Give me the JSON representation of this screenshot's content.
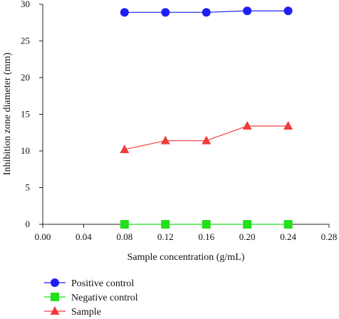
{
  "chart_data": {
    "type": "line",
    "title": "",
    "xlabel": "Sample concentration (g/mL)",
    "ylabel": "Inhibition zone diameter (mm)",
    "xlim": [
      0.0,
      0.28
    ],
    "ylim": [
      0,
      30
    ],
    "xticks": [
      "0.00",
      "0.04",
      "0.08",
      "0.12",
      "0.16",
      "0.20",
      "0.24",
      "0.28"
    ],
    "yticks": [
      "0",
      "5",
      "10",
      "15",
      "20",
      "25",
      "30"
    ],
    "x": [
      0.08,
      0.12,
      0.16,
      0.2,
      0.24
    ],
    "grid": false,
    "legend_position": "bottom-left",
    "series": [
      {
        "name": "Positive control",
        "values": [
          28.9,
          28.9,
          28.9,
          29.1,
          29.1
        ],
        "color": "#1f1ff5",
        "marker": "circle"
      },
      {
        "name": "Negative control",
        "values": [
          0,
          0,
          0,
          0,
          0
        ],
        "color": "#22e01a",
        "marker": "square"
      },
      {
        "name": "Sample",
        "values": [
          10.2,
          11.4,
          11.4,
          13.4,
          13.4
        ],
        "color": "#f03c3c",
        "marker": "triangle"
      }
    ]
  }
}
